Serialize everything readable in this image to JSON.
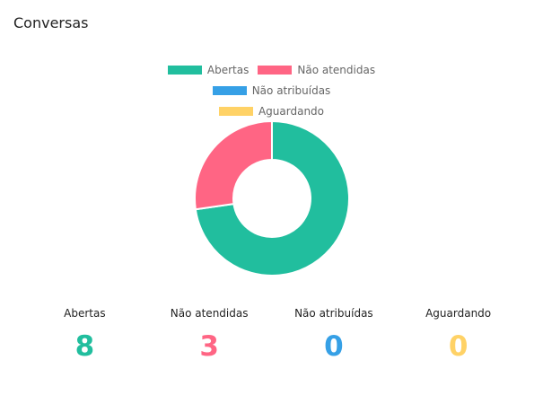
{
  "card": {
    "title": "Conversas"
  },
  "legend": [
    {
      "label": "Abertas",
      "color": "#21be9e"
    },
    {
      "label": "Não atendidas",
      "color": "#ff6584"
    },
    {
      "label": "Não atribuídas",
      "color": "#36a0e6"
    },
    {
      "label": "Aguardando",
      "color": "#ffd266"
    }
  ],
  "chart_data": {
    "type": "pie",
    "donut": true,
    "categories": [
      "Abertas",
      "Não atendidas",
      "Não atribuídas",
      "Aguardando"
    ],
    "values": [
      8,
      3,
      0,
      0
    ],
    "colors": [
      "#21be9e",
      "#ff6584",
      "#36a0e6",
      "#ffd266"
    ],
    "legend_position": "top"
  },
  "stats": [
    {
      "label": "Abertas",
      "value": "8",
      "color": "#21be9e"
    },
    {
      "label": "Não atendidas",
      "value": "3",
      "color": "#ff6584"
    },
    {
      "label": "Não atribuídas",
      "value": "0",
      "color": "#36a0e6"
    },
    {
      "label": "Aguardando",
      "value": "0",
      "color": "#ffd266"
    }
  ]
}
